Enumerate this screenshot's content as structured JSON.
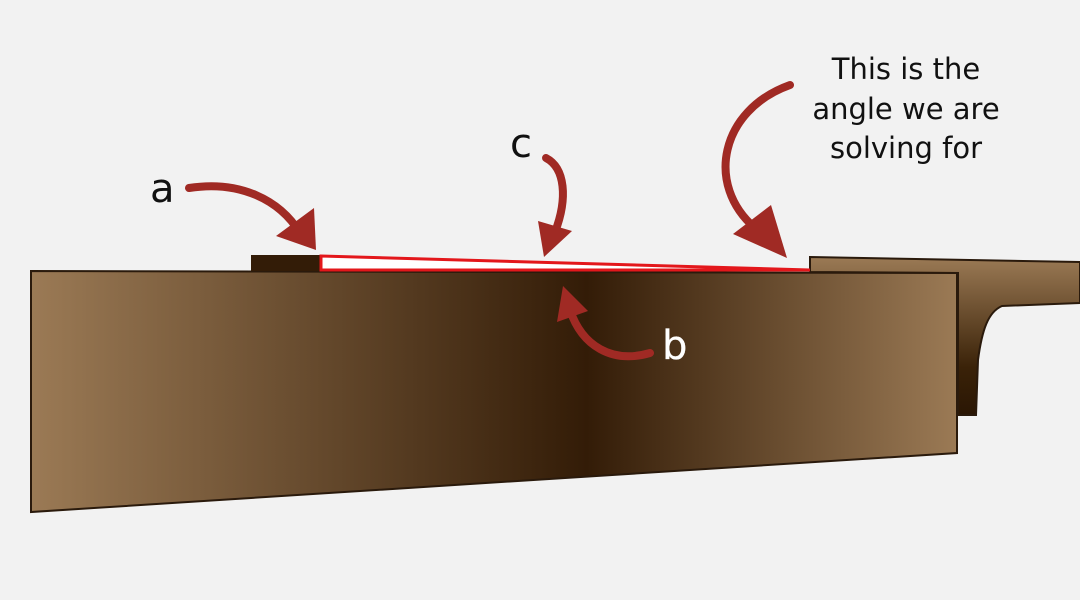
{
  "labels": {
    "a": "a",
    "b": "b",
    "c": "c"
  },
  "annotation": {
    "lines": [
      "This is the",
      "angle we are",
      "solving for"
    ]
  },
  "colors": {
    "background": "#f2f2f2",
    "arrow": "#a02a24",
    "triangle_outline": "#e3171b",
    "triangle_fill": "#ffffff",
    "wood_light": "#9b7a55",
    "wood_dark": "#331c07",
    "outline": "#2a1a0c"
  }
}
